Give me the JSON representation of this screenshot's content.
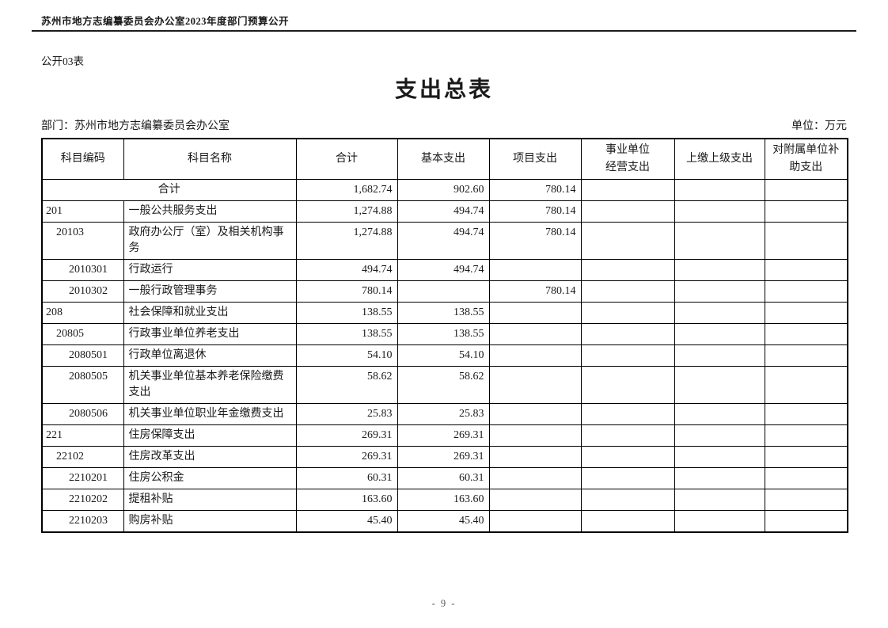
{
  "page": {
    "header_text": "苏州市地方志编纂委员会办公室2023年度部门预算公开",
    "table_label": "公开03表",
    "title": "支出总表",
    "department_label": "部门：苏州市地方志编纂委员会办公室",
    "unit_label": "单位：万元",
    "page_number": "- 9 -"
  },
  "table": {
    "columns": [
      {
        "key": "code",
        "label": "科目编码",
        "name": "subject-code"
      },
      {
        "key": "name",
        "label": "科目名称",
        "name": "subject-name"
      },
      {
        "key": "total",
        "label": "合计",
        "name": "total"
      },
      {
        "key": "basic",
        "label": "基本支出",
        "name": "basic-expenditure"
      },
      {
        "key": "project",
        "label": "项目支出",
        "name": "project-expenditure"
      },
      {
        "key": "operating",
        "label": "事业单位\n经营支出",
        "name": "business-operating-expenditure"
      },
      {
        "key": "upper",
        "label": "上缴上级支出",
        "name": "upper-level-payment"
      },
      {
        "key": "subsidy",
        "label": "对附属单位补助支出",
        "name": "affiliated-unit-subsidy"
      }
    ],
    "rows": [
      {
        "merged": true,
        "code": "",
        "level": 0,
        "name": "合计",
        "total": "1,682.74",
        "basic": "902.60",
        "project": "780.14",
        "operating": "",
        "upper": "",
        "subsidy": ""
      },
      {
        "merged": false,
        "code": "201",
        "level": 1,
        "name": "一般公共服务支出",
        "total": "1,274.88",
        "basic": "494.74",
        "project": "780.14",
        "operating": "",
        "upper": "",
        "subsidy": ""
      },
      {
        "merged": false,
        "code": "20103",
        "level": 2,
        "name": "政府办公厅（室）及相关机构事务",
        "total": "1,274.88",
        "basic": "494.74",
        "project": "780.14",
        "operating": "",
        "upper": "",
        "subsidy": ""
      },
      {
        "merged": false,
        "code": "2010301",
        "level": 3,
        "name": "行政运行",
        "total": "494.74",
        "basic": "494.74",
        "project": "",
        "operating": "",
        "upper": "",
        "subsidy": ""
      },
      {
        "merged": false,
        "code": "2010302",
        "level": 3,
        "name": "一般行政管理事务",
        "total": "780.14",
        "basic": "",
        "project": "780.14",
        "operating": "",
        "upper": "",
        "subsidy": ""
      },
      {
        "merged": false,
        "code": "208",
        "level": 1,
        "name": "社会保障和就业支出",
        "total": "138.55",
        "basic": "138.55",
        "project": "",
        "operating": "",
        "upper": "",
        "subsidy": ""
      },
      {
        "merged": false,
        "code": "20805",
        "level": 2,
        "name": "行政事业单位养老支出",
        "total": "138.55",
        "basic": "138.55",
        "project": "",
        "operating": "",
        "upper": "",
        "subsidy": ""
      },
      {
        "merged": false,
        "code": "2080501",
        "level": 3,
        "name": "行政单位离退休",
        "total": "54.10",
        "basic": "54.10",
        "project": "",
        "operating": "",
        "upper": "",
        "subsidy": ""
      },
      {
        "merged": false,
        "code": "2080505",
        "level": 3,
        "name": "机关事业单位基本养老保险缴费支出",
        "total": "58.62",
        "basic": "58.62",
        "project": "",
        "operating": "",
        "upper": "",
        "subsidy": ""
      },
      {
        "merged": false,
        "code": "2080506",
        "level": 3,
        "name": "机关事业单位职业年金缴费支出",
        "total": "25.83",
        "basic": "25.83",
        "project": "",
        "operating": "",
        "upper": "",
        "subsidy": ""
      },
      {
        "merged": false,
        "code": "221",
        "level": 1,
        "name": "住房保障支出",
        "total": "269.31",
        "basic": "269.31",
        "project": "",
        "operating": "",
        "upper": "",
        "subsidy": ""
      },
      {
        "merged": false,
        "code": "22102",
        "level": 2,
        "name": "住房改革支出",
        "total": "269.31",
        "basic": "269.31",
        "project": "",
        "operating": "",
        "upper": "",
        "subsidy": ""
      },
      {
        "merged": false,
        "code": "2210201",
        "level": 3,
        "name": "住房公积金",
        "total": "60.31",
        "basic": "60.31",
        "project": "",
        "operating": "",
        "upper": "",
        "subsidy": ""
      },
      {
        "merged": false,
        "code": "2210202",
        "level": 3,
        "name": "提租补贴",
        "total": "163.60",
        "basic": "163.60",
        "project": "",
        "operating": "",
        "upper": "",
        "subsidy": ""
      },
      {
        "merged": false,
        "code": "2210203",
        "level": 3,
        "name": "购房补贴",
        "total": "45.40",
        "basic": "45.40",
        "project": "",
        "operating": "",
        "upper": "",
        "subsidy": ""
      }
    ]
  }
}
